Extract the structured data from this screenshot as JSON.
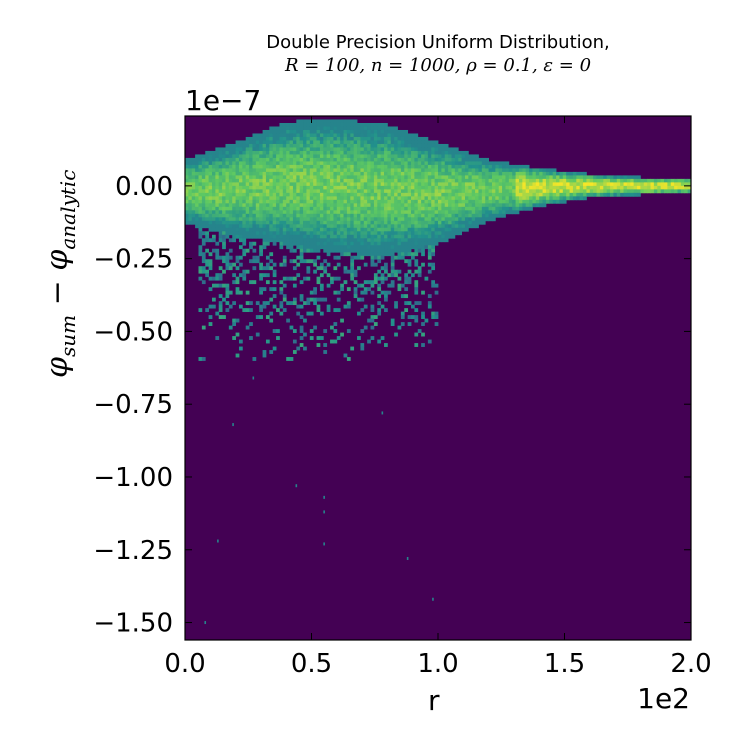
{
  "chart_data": {
    "type": "heatmap",
    "title_line1": "Double Precision Uniform Distribution,",
    "title_line2": "R = 100, n = 1000, ρ = 0.1, ε = 0",
    "xlabel": "r",
    "ylabel_base": "φ",
    "ylabel_sub1": "sum",
    "ylabel_mid": " − φ",
    "ylabel_sub2": "analytic",
    "x_offset_text": "1e2",
    "y_offset_text": "1e−7",
    "xlim": [
      0.0,
      2.0
    ],
    "ylim": [
      -1.56,
      0.24
    ],
    "x_ticks": [
      0.0,
      0.5,
      1.0,
      1.5,
      2.0
    ],
    "x_tick_labels": [
      "0.0",
      "0.5",
      "1.0",
      "1.5",
      "2.0"
    ],
    "y_ticks": [
      0.0,
      -0.25,
      -0.5,
      -0.75,
      -1.0,
      -1.25,
      -1.5
    ],
    "y_tick_labels": [
      "0.00",
      "−0.25",
      "−0.50",
      "−0.75",
      "−1.00",
      "−1.25",
      "−1.50"
    ],
    "colormap": "viridis",
    "background_color": "#440154",
    "density_band": {
      "x": [
        0.0,
        0.2,
        0.4,
        0.6,
        0.8,
        1.0,
        1.2,
        1.4,
        1.6,
        1.8,
        2.0
      ],
      "upper": [
        0.09,
        0.15,
        0.22,
        0.23,
        0.21,
        0.15,
        0.09,
        0.06,
        0.04,
        0.03,
        0.025
      ],
      "lower": [
        -0.13,
        -0.17,
        -0.2,
        -0.23,
        -0.24,
        -0.2,
        -0.12,
        -0.07,
        -0.04,
        -0.03,
        -0.025
      ],
      "sparse_tail_x_range": [
        0.05,
        1.0
      ],
      "sparse_tail_min_y": -0.6,
      "outliers": [
        {
          "x": 0.08,
          "y": -1.5
        },
        {
          "x": 0.13,
          "y": -1.22
        },
        {
          "x": 0.19,
          "y": -0.82
        },
        {
          "x": 0.27,
          "y": -0.66
        },
        {
          "x": 0.44,
          "y": -1.03
        },
        {
          "x": 0.55,
          "y": -1.07
        },
        {
          "x": 0.55,
          "y": -1.23
        },
        {
          "x": 0.55,
          "y": -1.12
        },
        {
          "x": 0.88,
          "y": -1.28
        },
        {
          "x": 0.98,
          "y": -1.42
        },
        {
          "x": 0.78,
          "y": -0.78
        }
      ]
    }
  }
}
